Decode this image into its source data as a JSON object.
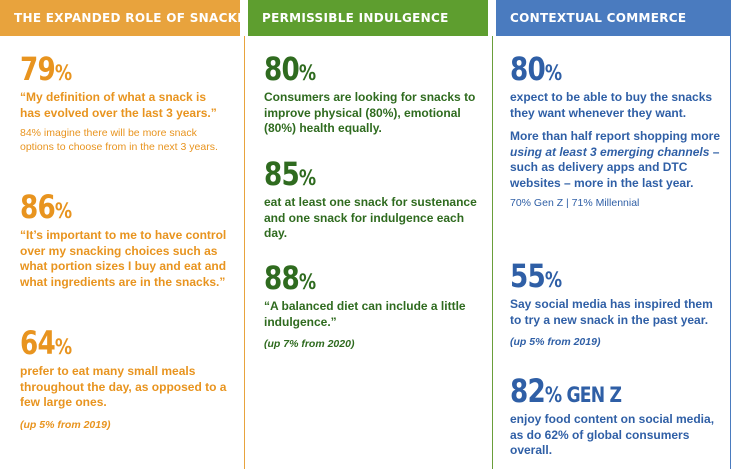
{
  "columns": [
    {
      "title": "THE EXPANDED ROLE OF SNACKING",
      "stats": [
        {
          "value": "79",
          "unit": "%",
          "text": "“My definition of what a snack is has evolved over the last 3 years.”",
          "note": "84% imagine there will be more snack options to choose from in the next 3 years."
        },
        {
          "value": "86",
          "unit": "%",
          "text": "“It’s important to me to have control over my snacking choices such as what portion sizes I buy and eat and what ingredients are in the snacks.”"
        },
        {
          "value": "64",
          "unit": "%",
          "text": "prefer to eat many small meals throughout the day, as opposed to a few large ones.",
          "trend": "(up 5% from 2019)"
        }
      ]
    },
    {
      "title": "PERMISSIBLE INDULGENCE",
      "stats": [
        {
          "value": "80",
          "unit": "%",
          "text": "Consumers are looking for snacks to improve physical (80%), emotional (80%) health equally."
        },
        {
          "value": "85",
          "unit": "%",
          "text": "eat at least one snack for sustenance and one snack for indulgence each day."
        },
        {
          "value": "88",
          "unit": "%",
          "text": "“A balanced diet can include a little indulgence.”",
          "trend": "(up 7% from 2020)"
        }
      ]
    },
    {
      "title": "CONTEXTUAL COMMERCE",
      "stats": [
        {
          "value": "80",
          "unit": "%",
          "text": "expect to be able to buy the snacks they want whenever they want.",
          "text2_pre": "More than half report shopping more ",
          "text2_em": "using at least 3 emerging channels",
          "text2_post": " – such as delivery apps and DTC websites – more in the last year.",
          "note": "70% Gen Z | 71% Millennial"
        },
        {
          "value": "55",
          "unit": "%",
          "text": "Say social media has inspired them to try a new snack in the past year.",
          "trend": "(up 5% from 2019)"
        },
        {
          "value": "82",
          "unit": "% GEN Z",
          "text": "enjoy food content on social media, as do 62% of global consumers overall."
        }
      ]
    }
  ],
  "colors": {
    "orange": "#e8a33d",
    "green": "#5e9e2f",
    "blue": "#4a7bbf"
  }
}
